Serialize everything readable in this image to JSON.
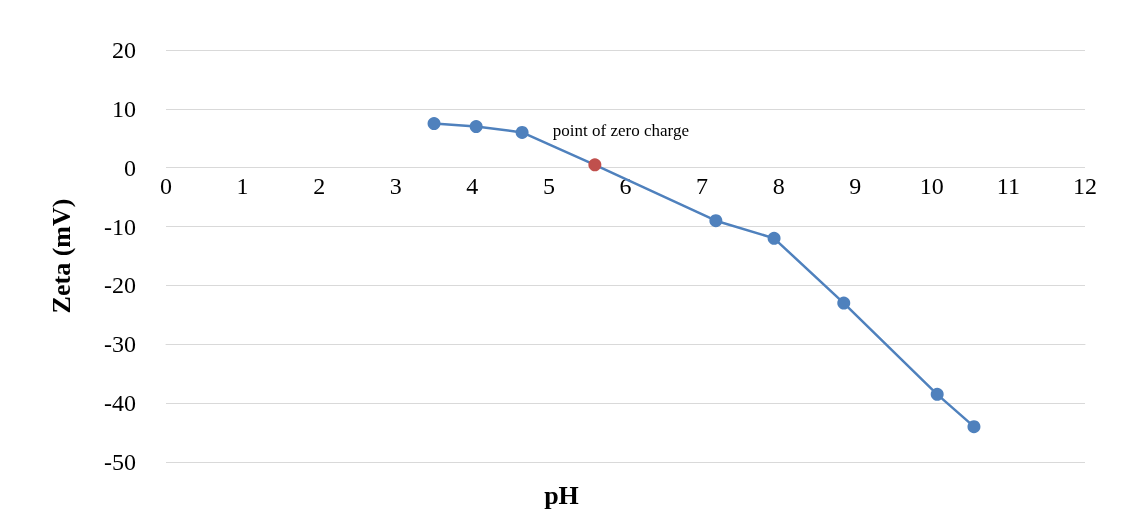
{
  "chart_data": {
    "type": "line",
    "xlabel": "pH",
    "ylabel": "Zeta (mV)",
    "x": [
      3.5,
      4.05,
      4.65,
      5.6,
      7.18,
      7.94,
      8.85,
      10.07,
      10.55
    ],
    "series": [
      {
        "color": "#4f81bd",
        "values": [
          7.5,
          7,
          6,
          0.5,
          -9,
          -12,
          -23,
          -38.5,
          -44
        ],
        "colors": [
          "#4f81bd",
          "#4f81bd",
          "#4f81bd",
          "#c0504d",
          "#4f81bd",
          "#4f81bd",
          "#4f81bd",
          "#4f81bd",
          "#4f81bd"
        ]
      }
    ],
    "annotations": [
      {
        "text": "point of zero charge",
        "x": 5.6,
        "y": 0.5
      }
    ],
    "xlim": [
      0,
      12
    ],
    "xticks": [
      0,
      1,
      2,
      3,
      4,
      5,
      6,
      7,
      8,
      9,
      10,
      11,
      12
    ],
    "ylim": [
      -50,
      20
    ],
    "yticks": [
      -50,
      -40,
      -30,
      -20,
      -10,
      0,
      10,
      20
    ],
    "grid": "y",
    "marker": "circle",
    "line_style": "solid"
  }
}
